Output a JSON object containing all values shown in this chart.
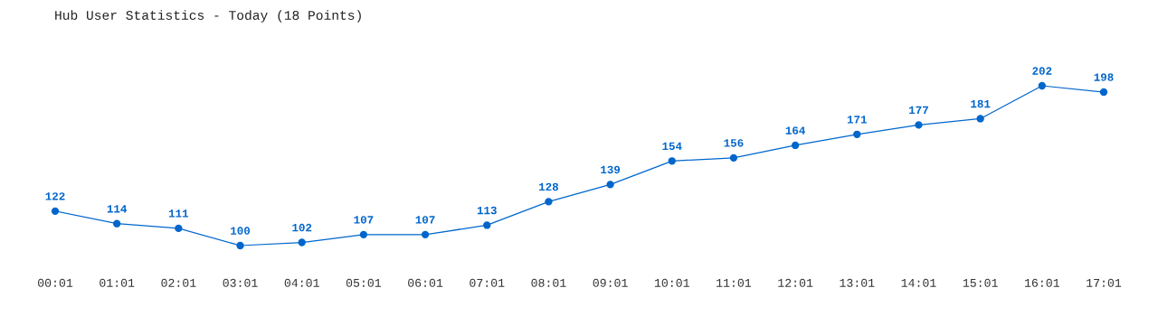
{
  "chart_data": {
    "type": "line",
    "title": "Hub User Statistics - Today (18 Points)",
    "categories": [
      "00:01",
      "01:01",
      "02:01",
      "03:01",
      "04:01",
      "05:01",
      "06:01",
      "07:01",
      "08:01",
      "09:01",
      "10:01",
      "11:01",
      "12:01",
      "13:01",
      "14:01",
      "15:01",
      "16:01",
      "17:01"
    ],
    "series": [
      {
        "color": "#0066cc",
        "values": [
          122,
          114,
          111,
          100,
          102,
          107,
          107,
          113,
          128,
          139,
          154,
          156,
          164,
          171,
          177,
          181,
          202,
          198
        ]
      }
    ],
    "data_labels": true,
    "marker": "circle",
    "line_style": "solid",
    "grid": false,
    "legend": false
  }
}
